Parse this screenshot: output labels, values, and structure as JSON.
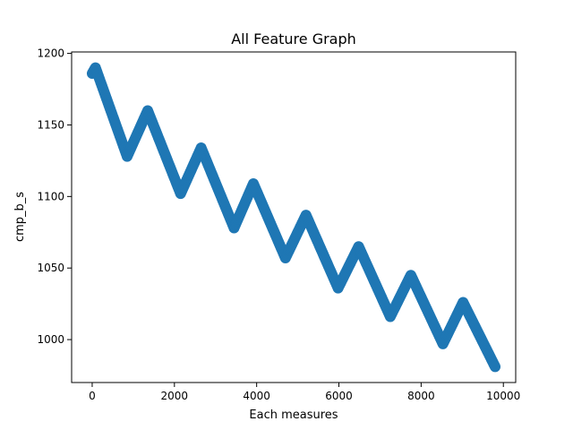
{
  "chart_data": {
    "type": "scatter",
    "title": "All Feature Graph",
    "xlabel": "Each measures",
    "ylabel": "cmp_b_s",
    "xlim": [
      -500,
      10300
    ],
    "ylim": [
      970,
      1201
    ],
    "xticks": [
      0,
      2000,
      4000,
      6000,
      8000,
      10000
    ],
    "yticks": [
      1000,
      1050,
      1100,
      1150,
      1200
    ],
    "grid": false,
    "legend": "none",
    "marker_color": "#1f77b4",
    "trend_vertices": [
      {
        "x": 0,
        "y": 1186
      },
      {
        "x": 80,
        "y": 1190
      },
      {
        "x": 850,
        "y": 1128
      },
      {
        "x": 1350,
        "y": 1160
      },
      {
        "x": 2150,
        "y": 1102
      },
      {
        "x": 2650,
        "y": 1134
      },
      {
        "x": 3450,
        "y": 1078
      },
      {
        "x": 3920,
        "y": 1109
      },
      {
        "x": 4700,
        "y": 1057
      },
      {
        "x": 5200,
        "y": 1087
      },
      {
        "x": 5980,
        "y": 1036
      },
      {
        "x": 6480,
        "y": 1065
      },
      {
        "x": 7250,
        "y": 1016
      },
      {
        "x": 7750,
        "y": 1045
      },
      {
        "x": 8530,
        "y": 997
      },
      {
        "x": 9020,
        "y": 1026
      },
      {
        "x": 9800,
        "y": 981
      }
    ]
  }
}
